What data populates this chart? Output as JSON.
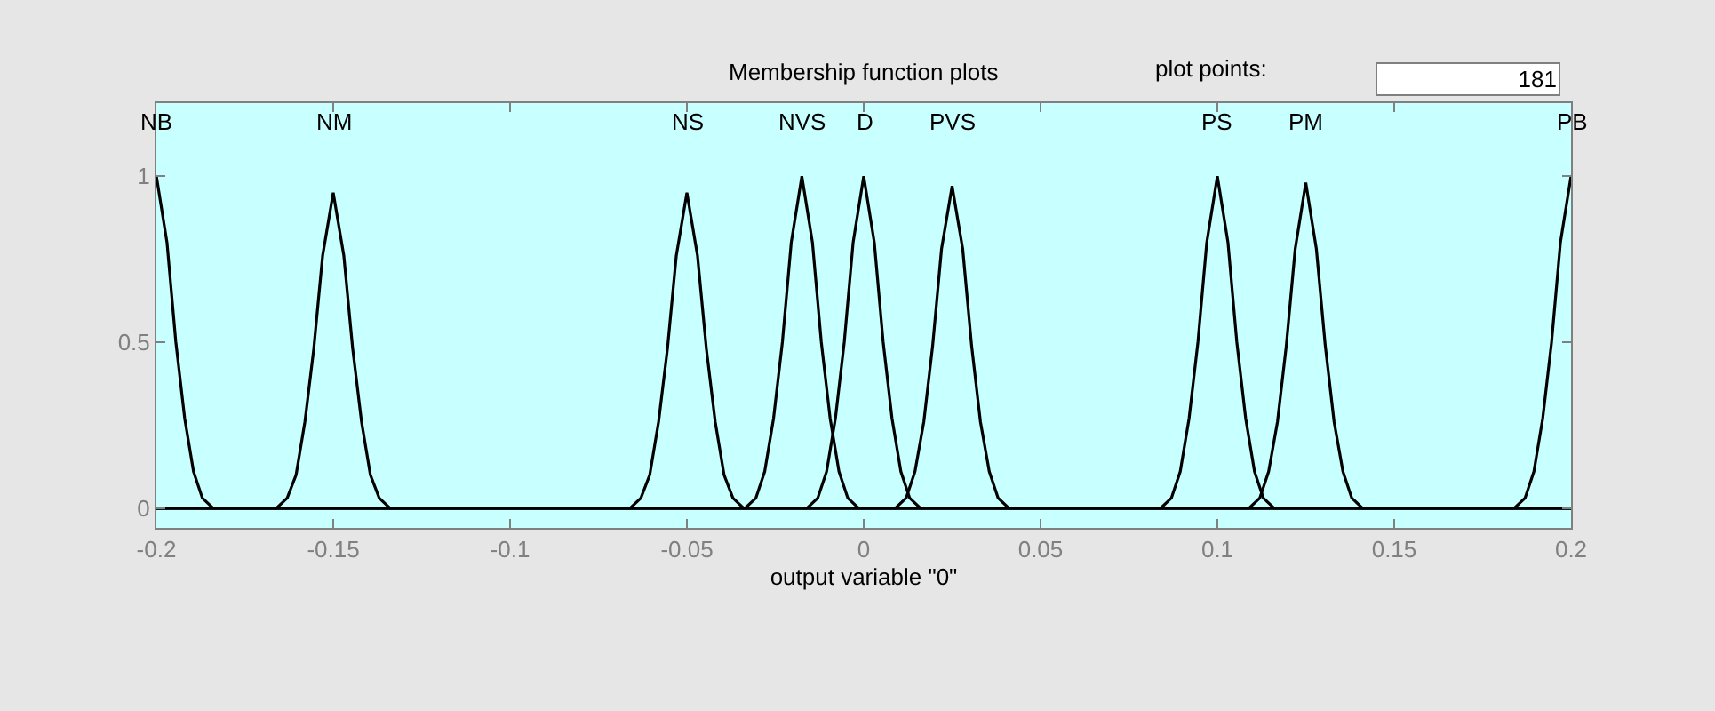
{
  "chart_data": {
    "type": "line",
    "title": "Membership function plots",
    "xlabel": "output variable \"0\"",
    "annotations": [
      "plot points:",
      "181"
    ],
    "xlim": [
      -0.2,
      0.2
    ],
    "ylim": [
      -0.06,
      1.22
    ],
    "xticks": [
      -0.2,
      -0.15,
      -0.1,
      -0.05,
      0,
      0.05,
      0.1,
      0.15,
      0.2
    ],
    "yticks": [
      0,
      0.5,
      1
    ],
    "series": [
      {
        "name": "NB",
        "color": "#000000",
        "x": [
          -0.2,
          -0.197,
          -0.1945,
          -0.192,
          -0.1895,
          -0.187,
          -0.184,
          0.2
        ],
        "values": [
          1,
          0.8,
          0.5,
          0.27,
          0.11,
          0.03,
          0,
          0
        ]
      },
      {
        "name": "NM",
        "color": "#000000",
        "x": [
          -0.2,
          -0.166,
          -0.163,
          -0.1605,
          -0.158,
          -0.1555,
          -0.153,
          -0.15,
          -0.147,
          -0.1445,
          -0.142,
          -0.1395,
          -0.137,
          -0.134,
          0.2
        ],
        "values": [
          0,
          0,
          0.03,
          0.1,
          0.26,
          0.48,
          0.76,
          0.95,
          0.76,
          0.48,
          0.26,
          0.1,
          0.03,
          0,
          0
        ]
      },
      {
        "name": "NS",
        "color": "#000000",
        "x": [
          -0.2,
          -0.066,
          -0.063,
          -0.0605,
          -0.058,
          -0.0555,
          -0.053,
          -0.05,
          -0.047,
          -0.0445,
          -0.042,
          -0.0395,
          -0.037,
          -0.034,
          0.2
        ],
        "values": [
          0,
          0,
          0.03,
          0.1,
          0.26,
          0.48,
          0.76,
          0.95,
          0.76,
          0.48,
          0.26,
          0.1,
          0.03,
          0,
          0
        ]
      },
      {
        "name": "NVS",
        "color": "#000000",
        "x": [
          -0.2,
          -0.0335,
          -0.0305,
          -0.028,
          -0.0255,
          -0.023,
          -0.0205,
          -0.0175,
          -0.0145,
          -0.012,
          -0.0095,
          -0.007,
          -0.0045,
          -0.0015,
          0.2
        ],
        "values": [
          0,
          0,
          0.03,
          0.11,
          0.27,
          0.5,
          0.8,
          1,
          0.8,
          0.5,
          0.27,
          0.11,
          0.03,
          0,
          0
        ]
      },
      {
        "name": "D",
        "color": "#000000",
        "x": [
          -0.2,
          -0.016,
          -0.013,
          -0.0105,
          -0.008,
          -0.0055,
          -0.003,
          0,
          0.003,
          0.0055,
          0.008,
          0.0105,
          0.013,
          0.016,
          0.2
        ],
        "values": [
          0,
          0,
          0.03,
          0.11,
          0.27,
          0.5,
          0.8,
          1,
          0.8,
          0.5,
          0.27,
          0.11,
          0.03,
          0,
          0
        ]
      },
      {
        "name": "PVS",
        "color": "#000000",
        "x": [
          -0.2,
          0.009,
          0.012,
          0.0145,
          0.017,
          0.0195,
          0.022,
          0.025,
          0.028,
          0.0305,
          0.033,
          0.0355,
          0.038,
          0.041,
          0.2
        ],
        "values": [
          0,
          0,
          0.03,
          0.11,
          0.26,
          0.49,
          0.78,
          0.97,
          0.78,
          0.49,
          0.26,
          0.11,
          0.03,
          0,
          0
        ]
      },
      {
        "name": "PS",
        "color": "#000000",
        "x": [
          -0.2,
          0.084,
          0.087,
          0.0895,
          0.092,
          0.0945,
          0.097,
          0.1,
          0.103,
          0.1055,
          0.108,
          0.1105,
          0.113,
          0.116,
          0.2
        ],
        "values": [
          0,
          0,
          0.03,
          0.11,
          0.27,
          0.5,
          0.8,
          1,
          0.8,
          0.5,
          0.27,
          0.11,
          0.03,
          0,
          0
        ]
      },
      {
        "name": "PM",
        "color": "#000000",
        "x": [
          -0.2,
          0.109,
          0.112,
          0.1145,
          0.117,
          0.1195,
          0.122,
          0.125,
          0.128,
          0.1305,
          0.133,
          0.1355,
          0.138,
          0.141,
          0.2
        ],
        "values": [
          0,
          0,
          0.03,
          0.11,
          0.26,
          0.49,
          0.78,
          0.98,
          0.78,
          0.49,
          0.26,
          0.11,
          0.03,
          0,
          0
        ]
      },
      {
        "name": "PB",
        "color": "#000000",
        "x": [
          -0.2,
          0.184,
          0.187,
          0.1895,
          0.192,
          0.1945,
          0.197,
          0.2
        ],
        "values": [
          0,
          0,
          0.03,
          0.11,
          0.27,
          0.5,
          0.8,
          1
        ]
      }
    ]
  }
}
